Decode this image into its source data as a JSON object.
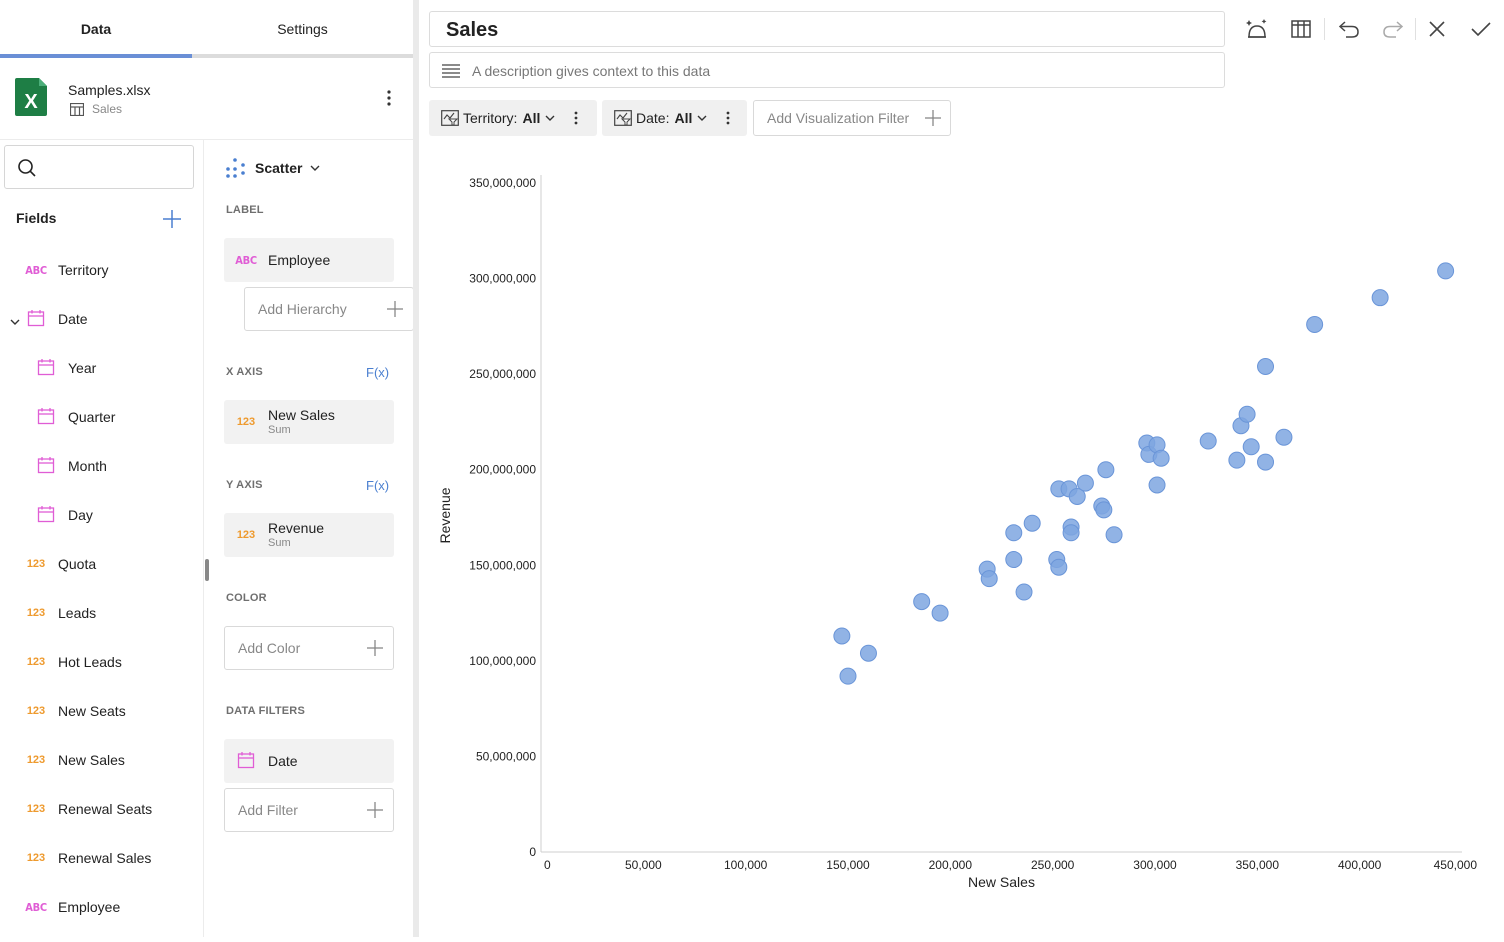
{
  "tabs": {
    "data": "Data",
    "settings": "Settings"
  },
  "source": {
    "file": "Samples.xlsx",
    "sheet": "Sales"
  },
  "search": {
    "value": "",
    "placeholder": ""
  },
  "fields": {
    "title": "Fields",
    "items": [
      {
        "type": "ABC",
        "label": "Territory"
      },
      {
        "type": "date",
        "label": "Date",
        "expanded": true
      },
      {
        "type": "date",
        "label": "Year",
        "child": true
      },
      {
        "type": "date",
        "label": "Quarter",
        "child": true
      },
      {
        "type": "date",
        "label": "Month",
        "child": true
      },
      {
        "type": "date",
        "label": "Day",
        "child": true
      },
      {
        "type": "123",
        "label": "Quota"
      },
      {
        "type": "123",
        "label": "Leads"
      },
      {
        "type": "123",
        "label": "Hot Leads"
      },
      {
        "type": "123",
        "label": "New Seats"
      },
      {
        "type": "123",
        "label": "New Sales"
      },
      {
        "type": "123",
        "label": "Renewal Seats"
      },
      {
        "type": "123",
        "label": "Renewal Sales"
      },
      {
        "type": "ABC",
        "label": "Employee"
      }
    ]
  },
  "config": {
    "viz_type": "Scatter",
    "label_section": "LABEL",
    "label_field": {
      "type": "ABC",
      "name": "Employee"
    },
    "add_hierarchy": "Add Hierarchy",
    "x_axis_section": "X AXIS",
    "x_field": {
      "type": "123",
      "name": "New Sales",
      "agg": "Sum"
    },
    "y_axis_section": "Y AXIS",
    "y_field": {
      "type": "123",
      "name": "Revenue",
      "agg": "Sum"
    },
    "fx": "F(x)",
    "color_section": "COLOR",
    "add_color": "Add Color",
    "data_filters_section": "DATA FILTERS",
    "data_filter_field": "Date",
    "add_filter": "Add Filter"
  },
  "header": {
    "title": "Sales",
    "description_placeholder": "A description gives context to this data"
  },
  "filters": {
    "territory": {
      "label": "Territory:",
      "value": "All"
    },
    "date": {
      "label": "Date:",
      "value": "All"
    },
    "add_visualization_filter": "Add Visualization Filter"
  },
  "colors": {
    "accent": "#6a8fd6",
    "point": "#7ea6e0",
    "abc": "#e05dd5",
    "numeric": "#ee9a2e",
    "excel": "#1e7e45"
  },
  "icons": [
    "search-icon",
    "plus-icon",
    "calendar-icon",
    "table-icon",
    "more-vert-icon",
    "scatter-icon",
    "chevron-down-icon",
    "menu-lines-icon",
    "filter-icon",
    "undo-icon",
    "redo-icon",
    "close-icon",
    "check-icon",
    "grid-icon",
    "magic-icon"
  ],
  "chart_data": {
    "type": "scatter",
    "title": "",
    "xlabel": "New Sales",
    "ylabel": "Revenue",
    "xlim": [
      0,
      450000
    ],
    "ylim": [
      0,
      350000000
    ],
    "x_ticks": [
      "0",
      "50,000",
      "100,000",
      "150,000",
      "200,000",
      "250,000",
      "300,000",
      "350,000",
      "400,000",
      "450,000"
    ],
    "y_ticks": [
      "0",
      "50,000,000",
      "100,000,000",
      "150,000,000",
      "200,000,000",
      "250,000,000",
      "300,000,000",
      "350,000,000"
    ],
    "grid": false,
    "series": [
      {
        "points": [
          [
            147000,
            113000000
          ],
          [
            150000,
            92000000
          ],
          [
            160000,
            104000000
          ],
          [
            186000,
            131000000
          ],
          [
            195000,
            125000000
          ],
          [
            218000,
            148000000
          ],
          [
            219000,
            143000000
          ],
          [
            231000,
            167000000
          ],
          [
            231000,
            153000000
          ],
          [
            236000,
            136000000
          ],
          [
            240000,
            172000000
          ],
          [
            253000,
            190000000
          ],
          [
            252000,
            153000000
          ],
          [
            253000,
            149000000
          ],
          [
            258000,
            190000000
          ],
          [
            259000,
            170000000
          ],
          [
            259000,
            167000000
          ],
          [
            262000,
            186000000
          ],
          [
            266000,
            193000000
          ],
          [
            274000,
            181000000
          ],
          [
            275000,
            179000000
          ],
          [
            276000,
            200000000
          ],
          [
            280000,
            166000000
          ],
          [
            296000,
            214000000
          ],
          [
            297000,
            208000000
          ],
          [
            301000,
            213000000
          ],
          [
            301000,
            192000000
          ],
          [
            303000,
            206000000
          ],
          [
            326000,
            215000000
          ],
          [
            340000,
            205000000
          ],
          [
            342000,
            223000000
          ],
          [
            345000,
            229000000
          ],
          [
            347000,
            212000000
          ],
          [
            354000,
            254000000
          ],
          [
            354000,
            204000000
          ],
          [
            363000,
            217000000
          ],
          [
            378000,
            276000000
          ],
          [
            410000,
            290000000
          ],
          [
            442000,
            304000000
          ]
        ]
      }
    ]
  }
}
